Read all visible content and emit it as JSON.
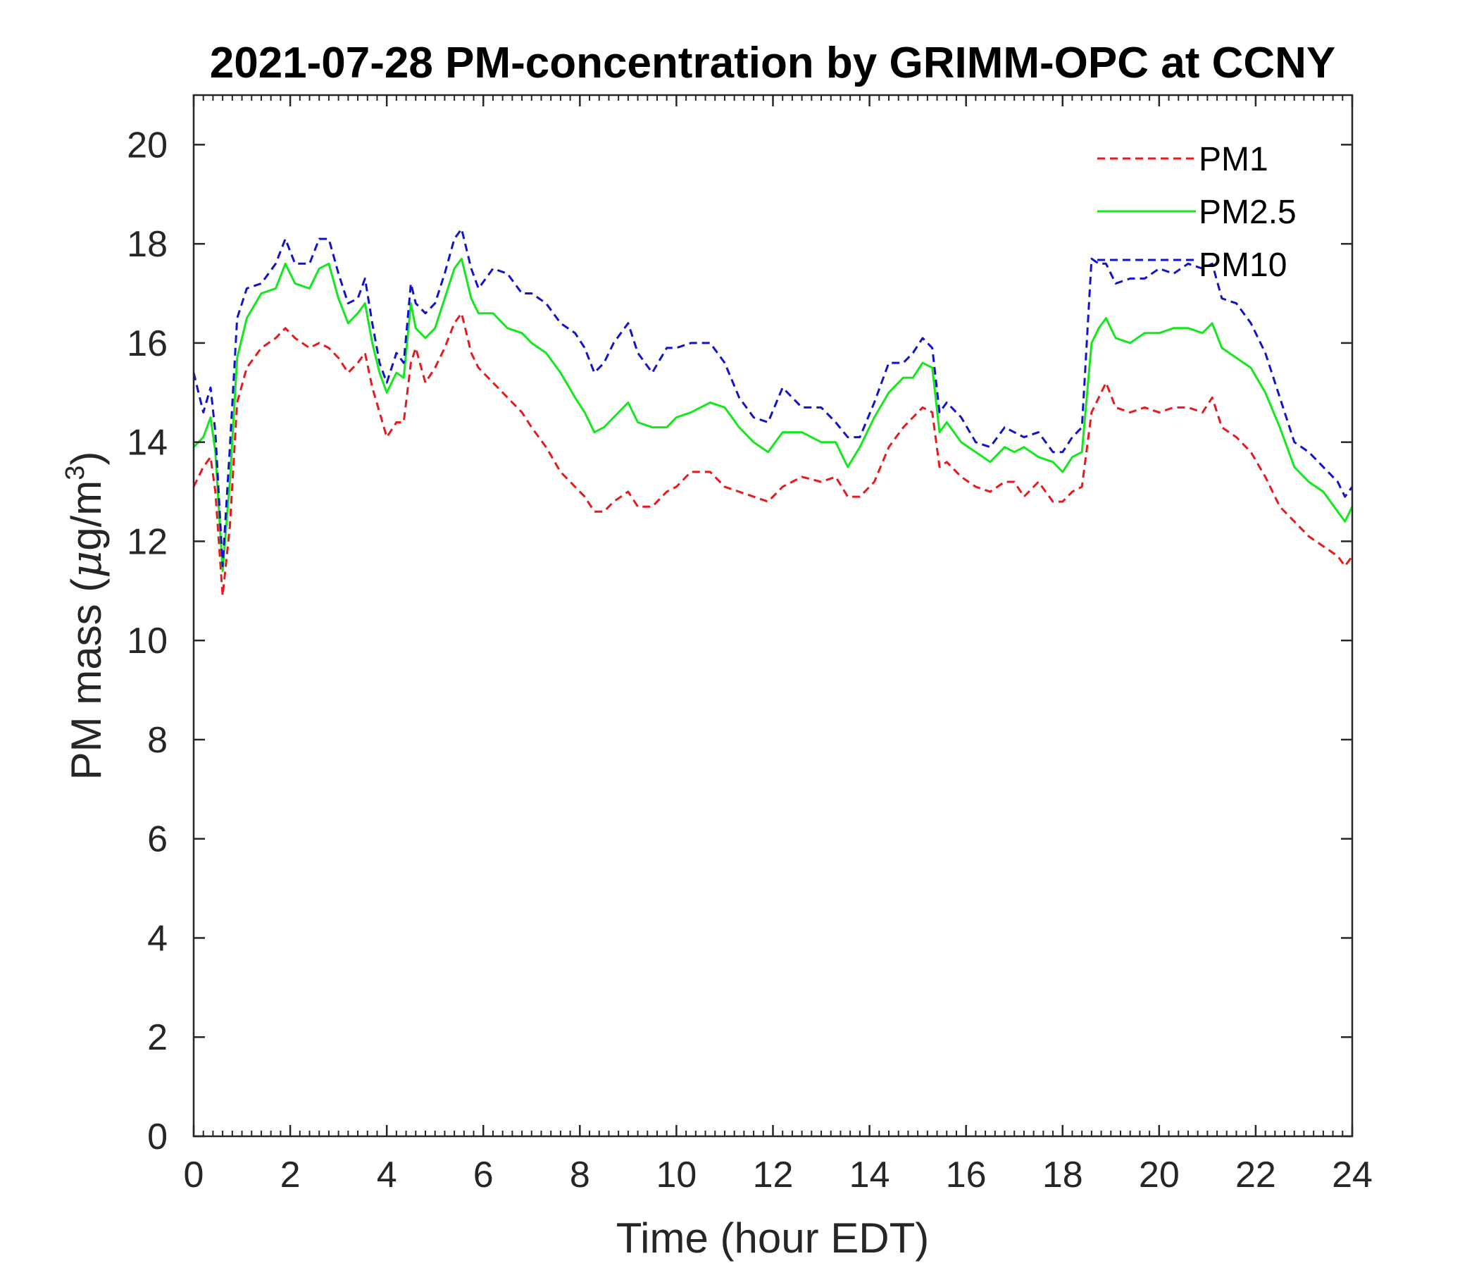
{
  "chart_data": {
    "type": "line",
    "title": "2021-07-28 PM-concentration by GRIMM-OPC at CCNY",
    "xlabel": "Time (hour EDT)",
    "ylabel_main": "PM mass (",
    "ylabel_mu": "μ",
    "ylabel_unit": "g/m",
    "ylabel_sup": "3",
    "ylabel_close": ")",
    "xlim": [
      0,
      24
    ],
    "ylim": [
      0,
      21
    ],
    "xticks": [
      "0",
      "2",
      "4",
      "6",
      "8",
      "10",
      "12",
      "14",
      "16",
      "18",
      "20",
      "22",
      "24"
    ],
    "yticks": [
      "0",
      "2",
      "4",
      "6",
      "8",
      "10",
      "12",
      "14",
      "16",
      "18",
      "20"
    ],
    "grid": false,
    "legend_position": "top-right",
    "series": [
      {
        "name": "PM1",
        "color": "#e8191c",
        "dash": "dashed",
        "x": [
          0,
          0.2,
          0.35,
          0.45,
          0.6,
          0.75,
          0.9,
          1.1,
          1.4,
          1.7,
          1.9,
          2.1,
          2.4,
          2.6,
          2.8,
          3.0,
          3.2,
          3.4,
          3.55,
          3.7,
          3.85,
          4.0,
          4.2,
          4.35,
          4.5,
          4.6,
          4.8,
          5.0,
          5.2,
          5.4,
          5.55,
          5.75,
          5.9,
          6.2,
          6.5,
          6.8,
          7.0,
          7.3,
          7.6,
          7.9,
          8.1,
          8.3,
          8.5,
          8.7,
          9.0,
          9.2,
          9.5,
          9.8,
          10.0,
          10.3,
          10.7,
          11.0,
          11.3,
          11.6,
          11.9,
          12.2,
          12.6,
          13.0,
          13.3,
          13.55,
          13.8,
          14.1,
          14.4,
          14.7,
          14.9,
          15.1,
          15.3,
          15.45,
          15.6,
          15.9,
          16.2,
          16.5,
          16.8,
          17.0,
          17.2,
          17.5,
          17.8,
          18.0,
          18.2,
          18.4,
          18.6,
          18.75,
          18.9,
          19.1,
          19.4,
          19.7,
          20.0,
          20.3,
          20.6,
          20.9,
          21.1,
          21.3,
          21.6,
          21.9,
          22.2,
          22.5,
          22.8,
          23.1,
          23.4,
          23.7,
          23.85,
          24.0
        ],
        "y": [
          13.1,
          13.5,
          13.7,
          13.0,
          10.9,
          12.3,
          14.8,
          15.5,
          15.9,
          16.1,
          16.3,
          16.1,
          15.9,
          16.0,
          15.9,
          15.7,
          15.4,
          15.6,
          15.8,
          15.1,
          14.6,
          14.1,
          14.4,
          14.4,
          15.6,
          15.9,
          15.2,
          15.5,
          15.9,
          16.4,
          16.6,
          15.8,
          15.5,
          15.2,
          14.9,
          14.6,
          14.3,
          13.9,
          13.4,
          13.1,
          12.9,
          12.6,
          12.6,
          12.8,
          13.0,
          12.7,
          12.7,
          13.0,
          13.1,
          13.4,
          13.4,
          13.1,
          13.0,
          12.9,
          12.8,
          13.1,
          13.3,
          13.2,
          13.3,
          12.9,
          12.9,
          13.2,
          13.9,
          14.3,
          14.5,
          14.7,
          14.6,
          13.5,
          13.6,
          13.3,
          13.1,
          13.0,
          13.2,
          13.2,
          12.9,
          13.2,
          12.8,
          12.8,
          13.0,
          13.1,
          14.6,
          14.9,
          15.2,
          14.7,
          14.6,
          14.7,
          14.6,
          14.7,
          14.7,
          14.6,
          14.9,
          14.3,
          14.1,
          13.8,
          13.3,
          12.7,
          12.4,
          12.1,
          11.9,
          11.7,
          11.5,
          11.7
        ]
      },
      {
        "name": "PM2.5",
        "color": "#13e81c",
        "dash": "solid",
        "x": [
          0,
          0.2,
          0.35,
          0.45,
          0.6,
          0.75,
          0.9,
          1.1,
          1.4,
          1.7,
          1.9,
          2.1,
          2.4,
          2.6,
          2.8,
          3.0,
          3.2,
          3.4,
          3.55,
          3.7,
          3.85,
          4.0,
          4.2,
          4.35,
          4.5,
          4.6,
          4.8,
          5.0,
          5.2,
          5.4,
          5.55,
          5.75,
          5.9,
          6.2,
          6.5,
          6.8,
          7.0,
          7.3,
          7.6,
          7.9,
          8.1,
          8.3,
          8.5,
          8.7,
          9.0,
          9.2,
          9.5,
          9.8,
          10.0,
          10.3,
          10.7,
          11.0,
          11.3,
          11.6,
          11.9,
          12.2,
          12.6,
          13.0,
          13.3,
          13.55,
          13.8,
          14.1,
          14.4,
          14.7,
          14.9,
          15.1,
          15.3,
          15.45,
          15.6,
          15.9,
          16.2,
          16.5,
          16.8,
          17.0,
          17.2,
          17.5,
          17.8,
          18.0,
          18.2,
          18.4,
          18.6,
          18.75,
          18.9,
          19.1,
          19.4,
          19.7,
          20.0,
          20.3,
          20.6,
          20.9,
          21.1,
          21.3,
          21.6,
          21.9,
          22.2,
          22.5,
          22.8,
          23.1,
          23.4,
          23.7,
          23.85,
          24.0
        ],
        "y": [
          13.9,
          14.1,
          14.5,
          13.8,
          11.4,
          13.2,
          15.7,
          16.5,
          17.0,
          17.1,
          17.6,
          17.2,
          17.1,
          17.5,
          17.6,
          16.9,
          16.4,
          16.6,
          16.8,
          16.0,
          15.4,
          15.0,
          15.4,
          15.3,
          16.8,
          16.3,
          16.1,
          16.3,
          16.9,
          17.5,
          17.7,
          16.9,
          16.6,
          16.6,
          16.3,
          16.2,
          16.0,
          15.8,
          15.4,
          14.9,
          14.6,
          14.2,
          14.3,
          14.5,
          14.8,
          14.4,
          14.3,
          14.3,
          14.5,
          14.6,
          14.8,
          14.7,
          14.3,
          14.0,
          13.8,
          14.2,
          14.2,
          14.0,
          14.0,
          13.5,
          13.9,
          14.5,
          15.0,
          15.3,
          15.3,
          15.6,
          15.5,
          14.2,
          14.4,
          14.0,
          13.8,
          13.6,
          13.9,
          13.8,
          13.9,
          13.7,
          13.6,
          13.4,
          13.7,
          13.8,
          16.0,
          16.3,
          16.5,
          16.1,
          16.0,
          16.2,
          16.2,
          16.3,
          16.3,
          16.2,
          16.4,
          15.9,
          15.7,
          15.5,
          15.0,
          14.3,
          13.5,
          13.2,
          13.0,
          12.6,
          12.4,
          12.7
        ]
      },
      {
        "name": "PM10",
        "color": "#1212cc",
        "dash": "dashed",
        "x": [
          0,
          0.2,
          0.35,
          0.45,
          0.6,
          0.75,
          0.9,
          1.1,
          1.4,
          1.7,
          1.9,
          2.1,
          2.4,
          2.6,
          2.8,
          3.0,
          3.2,
          3.4,
          3.55,
          3.7,
          3.85,
          4.0,
          4.2,
          4.35,
          4.5,
          4.6,
          4.8,
          5.0,
          5.2,
          5.4,
          5.55,
          5.75,
          5.9,
          6.2,
          6.5,
          6.8,
          7.0,
          7.3,
          7.6,
          7.9,
          8.1,
          8.3,
          8.5,
          8.7,
          9.0,
          9.2,
          9.5,
          9.8,
          10.0,
          10.3,
          10.7,
          11.0,
          11.3,
          11.6,
          11.9,
          12.2,
          12.6,
          13.0,
          13.3,
          13.55,
          13.8,
          14.1,
          14.4,
          14.7,
          14.9,
          15.1,
          15.3,
          15.45,
          15.6,
          15.9,
          16.2,
          16.5,
          16.8,
          17.0,
          17.2,
          17.5,
          17.8,
          18.0,
          18.2,
          18.4,
          18.6,
          18.75,
          18.9,
          19.1,
          19.4,
          19.7,
          20.0,
          20.3,
          20.6,
          20.9,
          21.1,
          21.3,
          21.6,
          21.9,
          22.2,
          22.5,
          22.8,
          23.1,
          23.4,
          23.7,
          23.85,
          24.0
        ],
        "y": [
          15.4,
          14.6,
          15.1,
          14.2,
          11.5,
          13.9,
          16.5,
          17.1,
          17.2,
          17.6,
          18.1,
          17.6,
          17.6,
          18.1,
          18.1,
          17.4,
          16.8,
          16.9,
          17.3,
          16.4,
          15.6,
          15.2,
          15.8,
          15.6,
          17.2,
          16.8,
          16.6,
          16.8,
          17.4,
          18.1,
          18.3,
          17.5,
          17.1,
          17.5,
          17.4,
          17.0,
          17.0,
          16.8,
          16.4,
          16.2,
          15.9,
          15.4,
          15.6,
          16.0,
          16.4,
          15.8,
          15.4,
          15.9,
          15.9,
          16.0,
          16.0,
          15.6,
          14.9,
          14.5,
          14.4,
          15.1,
          14.7,
          14.7,
          14.4,
          14.1,
          14.1,
          14.8,
          15.6,
          15.6,
          15.8,
          16.1,
          15.9,
          14.6,
          14.8,
          14.5,
          14.0,
          13.9,
          14.3,
          14.2,
          14.1,
          14.2,
          13.8,
          13.8,
          14.1,
          14.3,
          17.7,
          17.6,
          17.6,
          17.2,
          17.3,
          17.3,
          17.5,
          17.4,
          17.6,
          17.5,
          17.6,
          16.9,
          16.8,
          16.4,
          15.8,
          14.9,
          14.0,
          13.8,
          13.5,
          13.2,
          12.9,
          13.1
        ]
      }
    ]
  }
}
